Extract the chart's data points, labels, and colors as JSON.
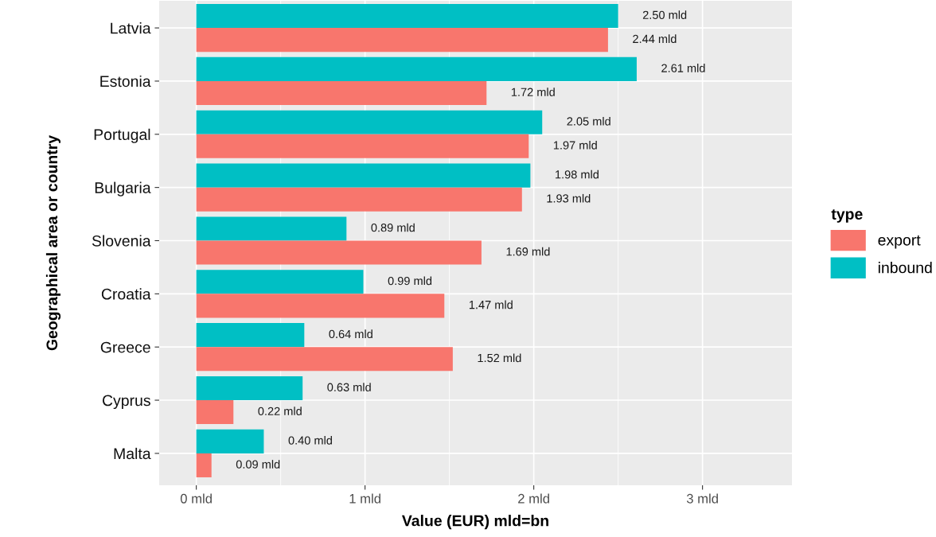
{
  "chart_data": {
    "type": "bar",
    "orientation": "horizontal",
    "xlabel": "Value (EUR) mld=bn",
    "ylabel": "Geographical area or country",
    "legend_title": "type",
    "categories": [
      "Latvia",
      "Estonia",
      "Portugal",
      "Bulgaria",
      "Slovenia",
      "Croatia",
      "Greece",
      "Cyprus",
      "Malta"
    ],
    "series": [
      {
        "name": "inbound",
        "color": "#00bfc4",
        "values": [
          2.5,
          2.61,
          2.05,
          1.98,
          0.89,
          0.99,
          0.64,
          0.63,
          0.4
        ],
        "value_labels": [
          "2.50 mld",
          "2.61 mld",
          "2.05 mld",
          "1.98 mld",
          "0.89 mld",
          "0.99 mld",
          "0.64 mld",
          "0.63 mld",
          "0.40 mld"
        ]
      },
      {
        "name": "export",
        "color": "#f8766d",
        "values": [
          2.44,
          1.72,
          1.97,
          1.93,
          1.69,
          1.47,
          1.52,
          0.22,
          0.09
        ],
        "value_labels": [
          "2.44 mld",
          "1.72 mld",
          "1.97 mld",
          "1.93 mld",
          "1.69 mld",
          "1.47 mld",
          "1.52 mld",
          "0.22 mld",
          "0.09 mld"
        ]
      }
    ],
    "xlim": [
      -0.22,
      3.53
    ],
    "xticks": [
      {
        "value": 0,
        "label": "0 mld"
      },
      {
        "value": 1,
        "label": "1 mld"
      },
      {
        "value": 2,
        "label": "2 mld"
      },
      {
        "value": 3,
        "label": "3 mld"
      }
    ],
    "grid": true,
    "legend": "right"
  }
}
